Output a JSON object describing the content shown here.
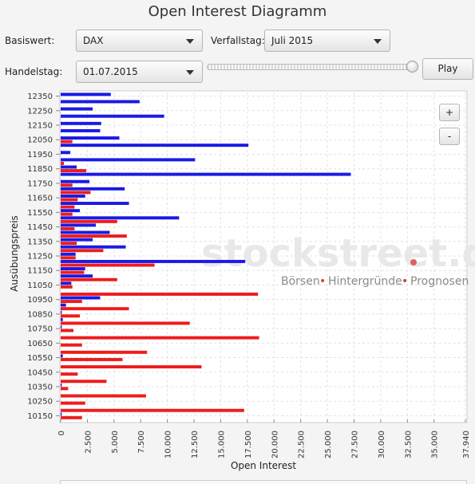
{
  "app": {
    "title": "Open Interest Diagramm"
  },
  "controls": {
    "basiswert_label": "Basiswert:",
    "basiswert_value": "DAX",
    "verfallstag_label": "Verfallstag:",
    "verfallstag_value": "Juli 2015",
    "handelstag_label": "Handelstag:",
    "handelstag_value": "01.07.2015",
    "slider_position": 1.0,
    "play_label": "Play",
    "zoom_in_label": "+",
    "zoom_out_label": "-"
  },
  "watermark": {
    "brand": "stockstreet.de",
    "tagline_parts": [
      "Börsen",
      "Hintergründe",
      "Prognosen"
    ]
  },
  "chart_data": {
    "type": "bar",
    "orientation": "horizontal",
    "xlabel": "Open Interest",
    "ylabel": "Ausübungspreis",
    "xlim": [
      0,
      37940
    ],
    "xticks": [
      "0",
      "2.500",
      "5.000",
      "7.500",
      "10.000",
      "12.500",
      "15.000",
      "17.500",
      "20.000",
      "22.500",
      "25.000",
      "27.500",
      "30.000",
      "32.500",
      "35.000",
      "37.940"
    ],
    "grid": true,
    "colors": {
      "blue_series": "#1a1ae6",
      "red_series": "#ee1c1c"
    },
    "categories": [
      "12350",
      "12300",
      "12250",
      "12200",
      "12150",
      "12100",
      "12050",
      "12000",
      "11950",
      "11900",
      "11850",
      "11800",
      "11750",
      "11700",
      "11650",
      "11600",
      "11550",
      "11500",
      "11450",
      "11400",
      "11350",
      "11300",
      "11250",
      "11200",
      "11150",
      "11100",
      "11050",
      "11000",
      "10950",
      "10900",
      "10850",
      "10800",
      "10750",
      "10700",
      "10650",
      "10600",
      "10550",
      "10500",
      "10450",
      "10400",
      "10350",
      "10300",
      "10250",
      "10200",
      "10150"
    ],
    "category_labels": [
      "12350",
      "12250",
      "12150",
      "12050",
      "11950",
      "11850",
      "11750",
      "11650",
      "11550",
      "11450",
      "11350",
      "11250",
      "11150",
      "11050",
      "10950",
      "10850",
      "10750",
      "10650",
      "10550",
      "10450",
      "10350",
      "10250",
      "10150"
    ],
    "series": [
      {
        "values": [
          4700,
          7400,
          3000,
          9700,
          3800,
          3700,
          5500,
          17600,
          900,
          12600,
          1500,
          27200,
          2700,
          6000,
          2300,
          6400,
          1800,
          11100,
          3300,
          4600,
          3000,
          6100,
          1400,
          17300,
          2300,
          3000,
          1000,
          0,
          3700,
          500,
          100,
          200,
          100,
          0,
          0,
          0,
          200,
          0,
          0,
          0,
          100,
          0,
          0,
          0,
          100
        ]
      },
      {
        "values": [
          0,
          0,
          0,
          0,
          0,
          0,
          1100,
          0,
          0,
          300,
          2400,
          0,
          1100,
          2800,
          1600,
          1300,
          1100,
          5300,
          1300,
          6200,
          1500,
          4000,
          1400,
          8800,
          2200,
          5300,
          1100,
          18500,
          2000,
          6400,
          1800,
          12100,
          1200,
          18600,
          2000,
          8100,
          5800,
          13200,
          1600,
          4300,
          700,
          8000,
          2300,
          17200,
          2000
        ]
      }
    ]
  }
}
